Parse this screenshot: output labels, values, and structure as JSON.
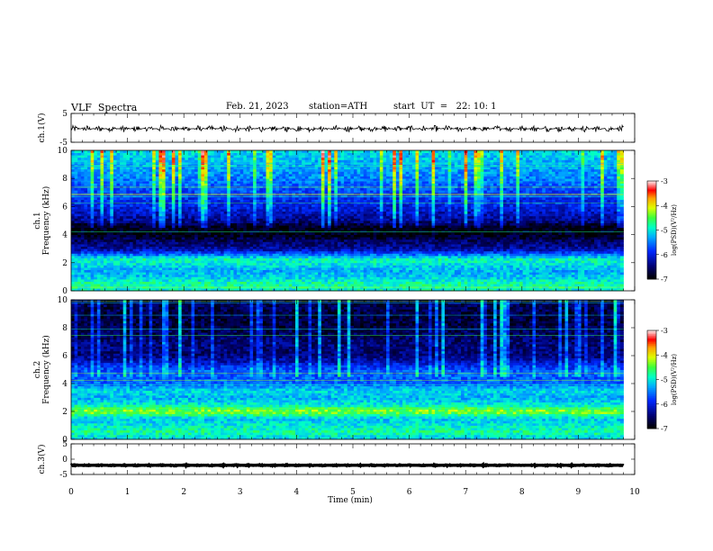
{
  "header": {
    "title": "VLF  Spectra",
    "date": "Feb. 21, 2023",
    "station": "station=ATH",
    "start": "start  UT  =   22: 10: 1"
  },
  "chart_data": [
    {
      "id": "ch1-waveform",
      "type": "line",
      "ylabel": "ch.1(V)",
      "ylim": [
        -5,
        5
      ],
      "yticks": [
        "5",
        "-5"
      ],
      "xlim": [
        0,
        10
      ],
      "series": [
        {
          "color": "#000000",
          "mean": -0.3,
          "amplitude": 1.2,
          "x_end": 9.8
        }
      ]
    },
    {
      "id": "ch1-spectrogram",
      "type": "heatmap",
      "ylabel": "ch.1\nFrequency (kHz)",
      "ylim": [
        0,
        10
      ],
      "yticks": [
        "0",
        "2",
        "4",
        "6",
        "8",
        "10"
      ],
      "xlim": [
        0,
        10
      ],
      "x_end": 9.8,
      "colorbar": {
        "label": "log(PSD)(V²/Hz)",
        "range": [
          -7,
          -3
        ],
        "ticks": [
          "-3",
          "-4",
          "-5",
          "-6",
          "-7"
        ]
      },
      "band_profile": [
        {
          "f": 0.0,
          "v": -5.0
        },
        {
          "f": 0.5,
          "v": -4.8
        },
        {
          "f": 1.0,
          "v": -5.2
        },
        {
          "f": 1.5,
          "v": -5.3
        },
        {
          "f": 2.0,
          "v": -5.0
        },
        {
          "f": 2.3,
          "v": -4.9
        },
        {
          "f": 2.6,
          "v": -5.6
        },
        {
          "f": 3.0,
          "v": -6.3
        },
        {
          "f": 3.6,
          "v": -6.6
        },
        {
          "f": 4.0,
          "v": -6.9
        },
        {
          "f": 4.6,
          "v": -6.9
        },
        {
          "f": 5.0,
          "v": -6.4
        },
        {
          "f": 6.0,
          "v": -6.0
        },
        {
          "f": 7.0,
          "v": -5.8
        },
        {
          "f": 8.0,
          "v": -5.5
        },
        {
          "f": 9.0,
          "v": -5.3
        },
        {
          "f": 10.0,
          "v": -5.1
        }
      ]
    },
    {
      "id": "ch2-spectrogram",
      "type": "heatmap",
      "ylabel": "ch.2\nFrequency (kHz)",
      "ylim": [
        0,
        10
      ],
      "yticks": [
        "0",
        "2",
        "4",
        "6",
        "8",
        "10"
      ],
      "xlim": [
        0,
        10
      ],
      "x_end": 9.8,
      "colorbar": {
        "label": "log(PSD)(V²/Hz)",
        "range": [
          -7,
          -3
        ],
        "ticks": [
          "-3",
          "-4",
          "-5",
          "-6",
          "-7"
        ]
      },
      "band_profile": [
        {
          "f": 0.0,
          "v": -5.2
        },
        {
          "f": 0.5,
          "v": -4.8
        },
        {
          "f": 1.0,
          "v": -5.0
        },
        {
          "f": 1.5,
          "v": -5.2
        },
        {
          "f": 2.0,
          "v": -4.3
        },
        {
          "f": 2.5,
          "v": -5.0
        },
        {
          "f": 3.0,
          "v": -5.3
        },
        {
          "f": 3.5,
          "v": -5.1
        },
        {
          "f": 4.0,
          "v": -5.6
        },
        {
          "f": 5.0,
          "v": -5.7
        },
        {
          "f": 5.6,
          "v": -6.2
        },
        {
          "f": 6.0,
          "v": -6.5
        },
        {
          "f": 7.0,
          "v": -6.5
        },
        {
          "f": 8.0,
          "v": -6.7
        },
        {
          "f": 9.0,
          "v": -6.7
        },
        {
          "f": 10.0,
          "v": -6.6
        }
      ]
    },
    {
      "id": "ch3-waveform",
      "type": "line",
      "ylabel": "ch.3(V)",
      "ylim": [
        -5,
        5
      ],
      "yticks": [
        "5",
        "0",
        "-5"
      ],
      "xlim": [
        0,
        10
      ],
      "series": [
        {
          "color": "#000000",
          "mean": -2.0,
          "amplitude": 0.2,
          "x_end": 9.8
        }
      ]
    }
  ],
  "xaxis": {
    "label": "Time  (min)",
    "ticks": [
      "0",
      "1",
      "2",
      "3",
      "4",
      "5",
      "6",
      "7",
      "8",
      "9",
      "10"
    ]
  }
}
